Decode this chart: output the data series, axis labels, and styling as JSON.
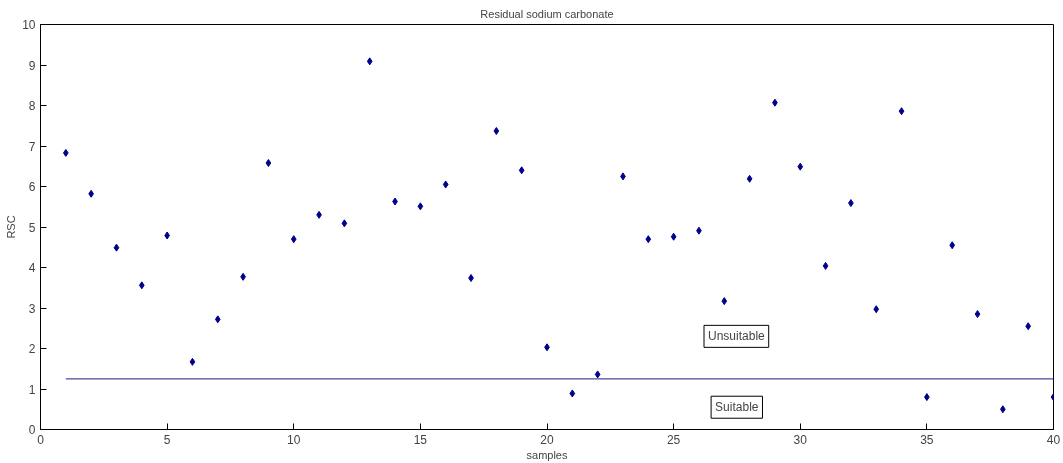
{
  "chart_data": {
    "type": "scatter",
    "title": "Residual sodium carbonate",
    "xlabel": "samples",
    "ylabel": "RSC",
    "grid": false,
    "xlim": [
      0,
      40
    ],
    "xticks": [
      0,
      5,
      10,
      15,
      20,
      25,
      30,
      35,
      40
    ],
    "ylim": [
      0,
      10
    ],
    "yticks": [
      0,
      1,
      2,
      3,
      4,
      5,
      6,
      7,
      8,
      9,
      10
    ],
    "x": [
      1,
      2,
      3,
      4,
      5,
      6,
      7,
      8,
      9,
      10,
      11,
      12,
      13,
      14,
      15,
      16,
      17,
      18,
      19,
      20,
      21,
      22,
      23,
      24,
      25,
      26,
      27,
      28,
      29,
      30,
      31,
      32,
      33,
      34,
      35,
      36,
      37,
      38,
      39,
      40
    ],
    "series": [
      {
        "color": "#00008b",
        "marker": "diamond",
        "values": [
          6.83,
          5.82,
          4.49,
          3.56,
          4.79,
          1.67,
          2.72,
          3.77,
          6.58,
          4.7,
          5.3,
          5.09,
          9.09,
          5.63,
          5.51,
          6.05,
          3.74,
          7.37,
          6.4,
          2.03,
          0.89,
          1.36,
          6.25,
          4.7,
          4.76,
          4.91,
          3.17,
          6.19,
          8.07,
          6.49,
          4.04,
          5.59,
          2.97,
          7.86,
          0.8,
          4.55,
          2.85,
          0.5,
          2.55,
          0.8
        ]
      },
      {
        "type": "line",
        "color": "#4b4b9b",
        "x": [
          1,
          40
        ],
        "values": [
          1.25,
          1.25
        ]
      }
    ],
    "annotations": [
      "Unsuitable",
      "Suitable"
    ]
  }
}
